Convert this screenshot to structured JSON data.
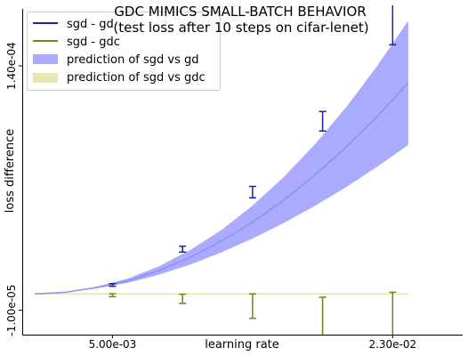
{
  "chart_data": {
    "type": "line",
    "title": "GDC MIMICS SMALL-BATCH BEHAVIOR",
    "subtitle": "(test loss after 10 steps on cifar-lenet)",
    "xlabel": "learning rate",
    "ylabel": "loss difference",
    "x_ticks": [
      {
        "value": 0.005,
        "label": "5.00e-03"
      },
      {
        "value": 0.023,
        "label": "2.30e-02"
      }
    ],
    "y_ticks": [
      {
        "value": 0.00014,
        "label": "1.40e-04"
      },
      {
        "value": -1e-05,
        "label": "-1.00e-05"
      }
    ],
    "xlim": [
      -0.0008,
      0.0275
    ],
    "ylim": [
      -2.5e-05,
      0.000175
    ],
    "grid": false,
    "legend_position": "top-left",
    "colors": {
      "sgd_gd": "#1f1fa8",
      "sgd_gdc": "#7f7f1a",
      "pred_gd_band": "#aaaaff",
      "pred_gd_line": "#8f8ff5",
      "pred_gdc_band": "#e6e6b3"
    },
    "series": [
      {
        "name": "sgd - gd",
        "kind": "errorbar",
        "x": [
          0.005,
          0.0095,
          0.014,
          0.0185,
          0.023
        ],
        "y": [
          5.5e-06,
          2.75e-05,
          6.25e-05,
          0.000106,
          0.000172
        ],
        "yerr": [
          8e-07,
          1.8e-06,
          3.5e-06,
          6e-06,
          1.9e-05
        ]
      },
      {
        "name": "sgd - gdc",
        "kind": "errorbar",
        "x": [
          0.005,
          0.0095,
          0.014,
          0.0185,
          0.023
        ],
        "y": [
          -8e-07,
          -3e-06,
          -7.5e-06,
          -1.4e-05,
          -1.8e-05
        ],
        "yerr": [
          9e-07,
          2.8e-06,
          7.5e-06,
          1.2e-05,
          1.9e-05
        ]
      },
      {
        "name": "prediction of sgd vs gd",
        "kind": "band",
        "x": [
          0.0,
          0.002,
          0.004,
          0.006,
          0.008,
          0.01,
          0.012,
          0.014,
          0.016,
          0.018,
          0.02,
          0.022,
          0.024
        ],
        "y": [
          0.0,
          1e-06,
          4e-06,
          8.1e-06,
          1.44e-05,
          2.25e-05,
          3.24e-05,
          4.41e-05,
          5.76e-05,
          7.29e-05,
          9e-05,
          0.0001089,
          0.0001296
        ],
        "lower": [
          0.0,
          9e-07,
          3.5e-06,
          6.8e-06,
          1.18e-05,
          1.8e-05,
          2.55e-05,
          3.4e-05,
          4.35e-05,
          5.4e-05,
          6.55e-05,
          7.8e-05,
          9.15e-05
        ],
        "upper": [
          0.0,
          1.1e-06,
          4.5e-06,
          9.4e-06,
          1.7e-05,
          2.7e-05,
          3.93e-05,
          5.42e-05,
          7.17e-05,
          9.18e-05,
          0.0001145,
          0.0001398,
          0.0001677
        ]
      },
      {
        "name": "prediction of sgd vs gdc",
        "kind": "band",
        "x": [
          0.0,
          0.024
        ],
        "y": [
          0.0,
          0.0
        ],
        "lower": [
          -3e-07,
          -3e-07
        ],
        "upper": [
          3e-07,
          3e-07
        ]
      }
    ]
  }
}
